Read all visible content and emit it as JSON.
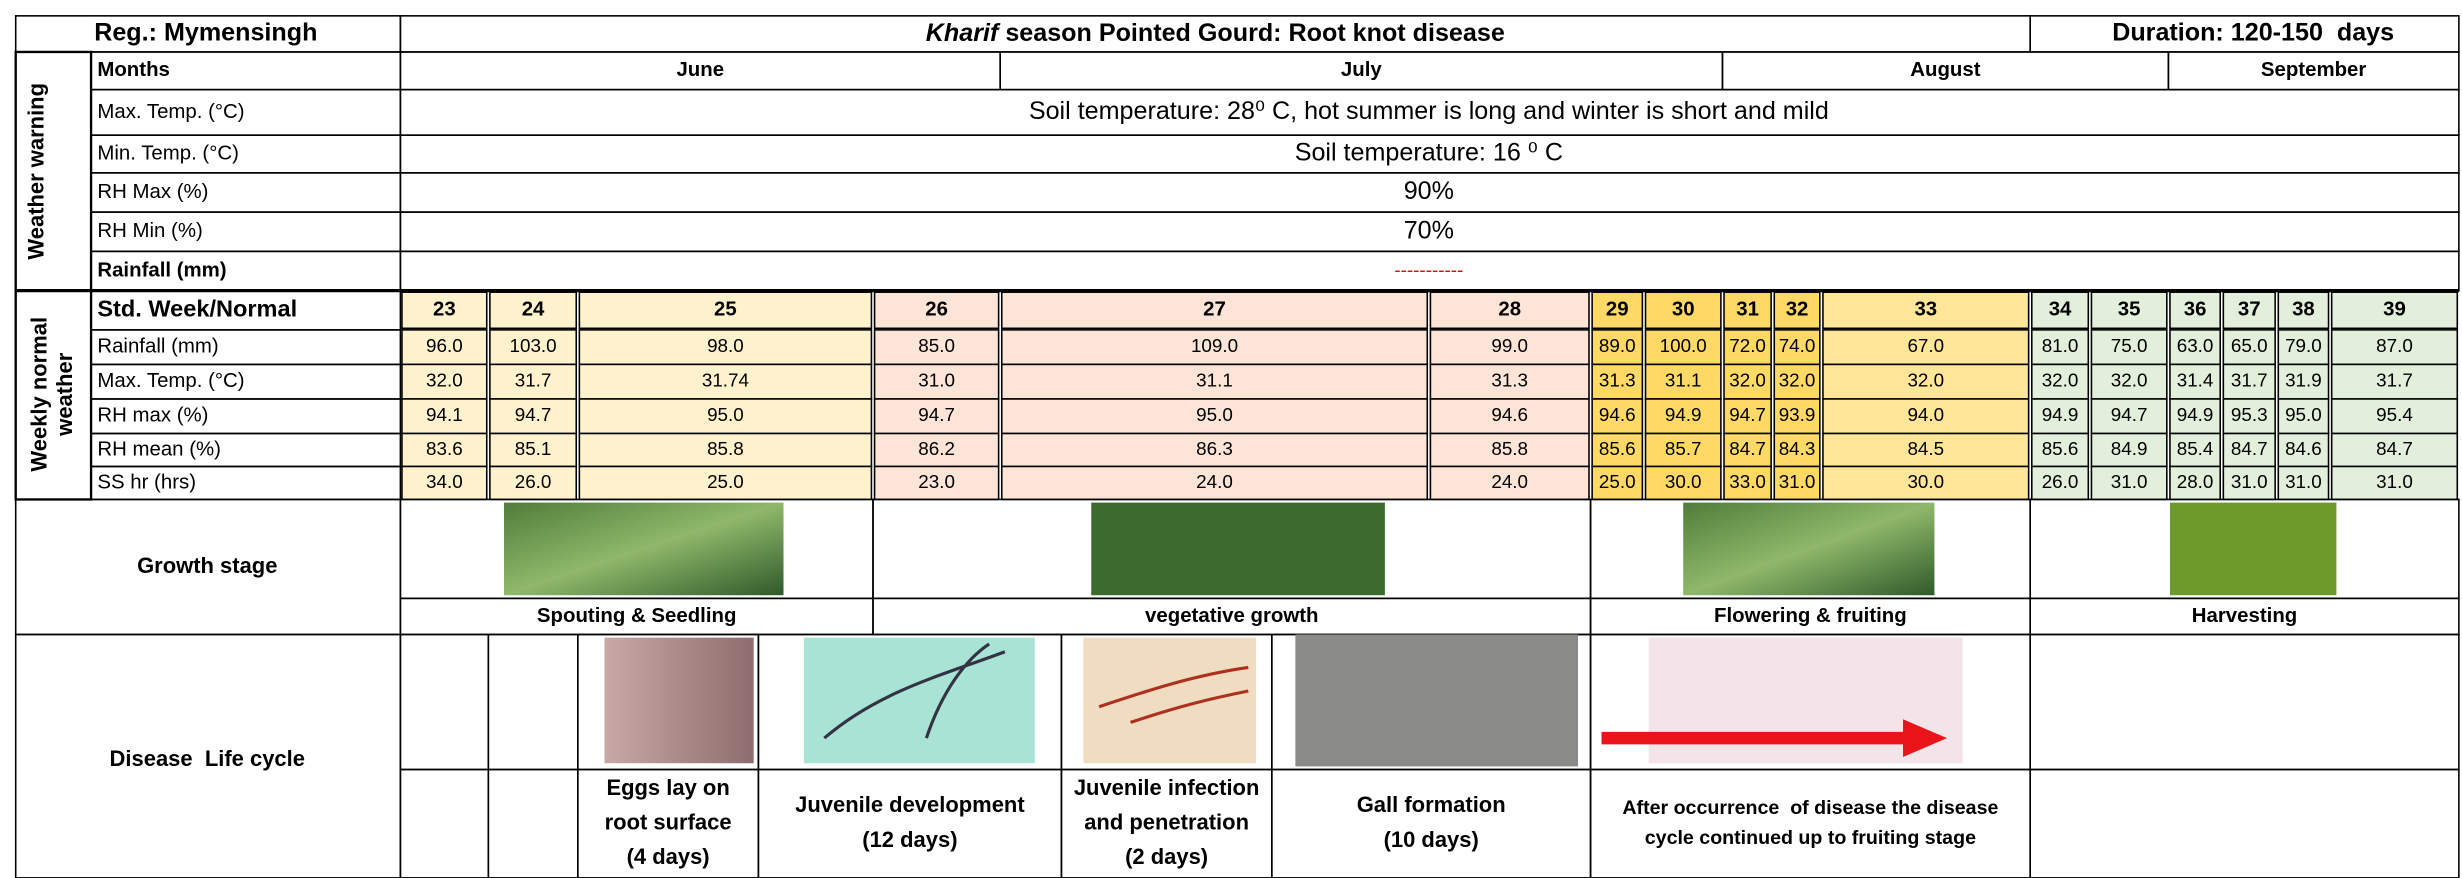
{
  "header": {
    "region": "Reg.: Mymensingh",
    "title_italic": "Kharif",
    "title_rest": " season Pointed Gourd: Root knot disease",
    "duration": "Duration: 120-150  days"
  },
  "weather_warning": {
    "label": "Weather warning",
    "months_label": "Months",
    "months": [
      "June",
      "July",
      "August",
      "September"
    ],
    "rows": [
      {
        "label": "Max. Temp. (°C)",
        "value": "Soil temperature: 28⁰ C, hot summer is long and winter is short and mild"
      },
      {
        "label": "Min. Temp. (°C)",
        "value": "Soil temperature: 16 ⁰ C"
      },
      {
        "label": "RH Max (%)",
        "value": "90%"
      },
      {
        "label": "RH Min (%)",
        "value": "70%"
      },
      {
        "label": "Rainfall (mm)",
        "value": "-----------"
      }
    ]
  },
  "weekly": {
    "label_lines": [
      "Weekly normal",
      "weather"
    ],
    "week_label": "Std. Week/Normal",
    "weeks": [
      "23",
      "24",
      "25",
      "26",
      "27",
      "28",
      "29",
      "30",
      "31",
      "32",
      "33",
      "34",
      "35",
      "36",
      "37",
      "38",
      "39"
    ],
    "rows": [
      {
        "label": "Rainfall (mm)",
        "values": [
          "96.0",
          "103.0",
          "98.0",
          "85.0",
          "109.0",
          "99.0",
          "89.0",
          "100.0",
          "72.0",
          "74.0",
          "67.0",
          "81.0",
          "75.0",
          "63.0",
          "65.0",
          "79.0",
          "87.0"
        ]
      },
      {
        "label": "Max. Temp. (°C)",
        "values": [
          "32.0",
          "31.7",
          "31.74",
          "31.0",
          "31.1",
          "31.3",
          "31.3",
          "31.1",
          "32.0",
          "32.0",
          "32.0",
          "32.0",
          "32.0",
          "31.4",
          "31.7",
          "31.9",
          "31.7"
        ]
      },
      {
        "label": "RH max (%)",
        "values": [
          "94.1",
          "94.7",
          "95.0",
          "94.7",
          "95.0",
          "94.6",
          "94.6",
          "94.9",
          "94.7",
          "93.9",
          "94.0",
          "94.9",
          "94.7",
          "94.9",
          "95.3",
          "95.0",
          "95.4"
        ]
      },
      {
        "label": "RH mean (%)",
        "values": [
          "83.6",
          "85.1",
          "85.8",
          "86.2",
          "86.3",
          "85.8",
          "85.6",
          "85.7",
          "84.7",
          "84.3",
          "84.5",
          "85.6",
          "84.9",
          "85.4",
          "84.7",
          "84.6",
          "84.7"
        ]
      },
      {
        "label": "SS hr (hrs)",
        "values": [
          "34.0",
          "26.0",
          "25.0",
          "23.0",
          "24.0",
          "24.0",
          "25.0",
          "30.0",
          "33.0",
          "31.0",
          "30.0",
          "26.0",
          "31.0",
          "28.0",
          "31.0",
          "31.0",
          "31.0"
        ]
      }
    ]
  },
  "growth_stage": {
    "label": "Growth stage",
    "stages": [
      "Spouting & Seedling",
      "vegetative growth",
      "Flowering & fruiting",
      "Harvesting"
    ]
  },
  "disease_cycle": {
    "label": "Disease  Life cycle",
    "steps": [
      [
        "Eggs lay on",
        "root surface",
        "(4 days)"
      ],
      [
        "Juvenile development",
        "(12 days)"
      ],
      [
        "Juvenile infection",
        "and penetration",
        "(2 days)"
      ],
      [
        "Gall formation",
        "(10 days)"
      ],
      [
        "After occurrence  of disease the disease",
        "cycle continued up to fruiting stage"
      ]
    ]
  }
}
